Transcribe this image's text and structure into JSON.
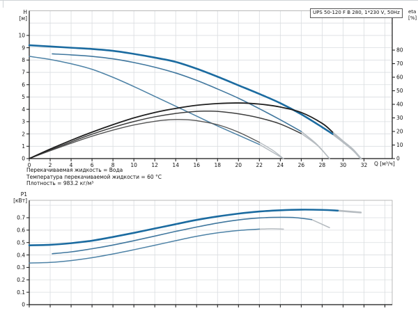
{
  "info_lines": [
    "Перекачиваемая жидкость = Вода",
    "Температура перекачиваемой жидкости = 60 °C",
    "Плотность = 983.2 кг/м³"
  ],
  "colors": {
    "speed3_blue": "#1b6ba0",
    "speed2_blue": "#40779e",
    "speed1_blue": "#4d82a6",
    "eta3_black": "#1f1f1f",
    "eta2_gray": "#3d3d3d",
    "eta1_gray": "#555555",
    "tail_gray": "#b6bcc1",
    "grid": "#dadde0",
    "border": "#a8a8a8",
    "axis": "#151515"
  },
  "chart_data": [
    {
      "type": "line",
      "title": "UPS 50-120 F B 280, 1*230 V, 50Hz",
      "xlabel": "Q [м³/ч]",
      "ylabel_left": [
        "H",
        "[м]"
      ],
      "ylabel_right": [
        "eta",
        "[%]"
      ],
      "xlim": [
        0,
        34.7
      ],
      "x_grid_step": 2,
      "x_ticks": [
        0,
        2,
        4,
        6,
        8,
        10,
        12,
        14,
        16,
        18,
        20,
        22,
        24,
        26,
        28,
        30,
        32
      ],
      "x_ticks_labeled": true,
      "ylim_left": [
        0,
        12
      ],
      "y_grid_step_left": 1,
      "y_left_ticks": [
        0,
        1,
        2,
        3,
        4,
        5,
        6,
        7,
        8,
        9,
        10
      ],
      "ylim_right": [
        0,
        109
      ],
      "y_right_ticks": [
        0,
        10,
        20,
        30,
        40,
        50,
        60,
        70,
        80
      ],
      "grid": true,
      "series": [
        {
          "name": "H curve speed 1",
          "axis": "left",
          "color": "speed1_blue",
          "width": 1.5,
          "points": [
            [
              0,
              8.3
            ],
            [
              2,
              8.05
            ],
            [
              4,
              7.7
            ],
            [
              6,
              7.25
            ],
            [
              8,
              6.6
            ],
            [
              10,
              5.85
            ],
            [
              12,
              5.05
            ],
            [
              14,
              4.25
            ],
            [
              16,
              3.45
            ],
            [
              18,
              2.65
            ],
            [
              20,
              1.9
            ],
            [
              22,
              1.15
            ]
          ],
          "tail": [
            [
              22,
              1.15
            ],
            [
              23.3,
              0.5
            ],
            [
              24.3,
              0
            ]
          ]
        },
        {
          "name": "H curve speed 2",
          "axis": "left",
          "color": "speed2_blue",
          "width": 1.6,
          "points": [
            [
              2.2,
              8.5
            ],
            [
              4,
              8.42
            ],
            [
              6,
              8.3
            ],
            [
              8,
              8.1
            ],
            [
              10,
              7.8
            ],
            [
              12,
              7.42
            ],
            [
              14,
              6.95
            ],
            [
              16,
              6.35
            ],
            [
              18,
              5.65
            ],
            [
              20,
              4.9
            ],
            [
              22,
              4.05
            ],
            [
              24,
              3.15
            ],
            [
              26,
              2.2
            ]
          ],
          "tail": [
            [
              26,
              2.2
            ],
            [
              27.5,
              1.15
            ],
            [
              28.7,
              0
            ]
          ]
        },
        {
          "name": "H curve speed 3",
          "axis": "left",
          "color": "speed3_blue",
          "width": 2.6,
          "points": [
            [
              0,
              9.2
            ],
            [
              2,
              9.1
            ],
            [
              4,
              9.0
            ],
            [
              6,
              8.9
            ],
            [
              8,
              8.75
            ],
            [
              10,
              8.5
            ],
            [
              12,
              8.2
            ],
            [
              14,
              7.85
            ],
            [
              16,
              7.3
            ],
            [
              18,
              6.65
            ],
            [
              20,
              5.95
            ],
            [
              22,
              5.25
            ],
            [
              24,
              4.5
            ],
            [
              26,
              3.6
            ],
            [
              28,
              2.55
            ],
            [
              29,
              2.0
            ]
          ],
          "tail": [
            [
              29,
              2.0
            ],
            [
              30,
              1.35
            ],
            [
              31,
              0.65
            ],
            [
              31.7,
              0
            ]
          ]
        },
        {
          "name": "eta curve speed 1",
          "axis": "right",
          "color": "eta1_gray",
          "width": 1.4,
          "points": [
            [
              0,
              0
            ],
            [
              2,
              5.8
            ],
            [
              4,
              11.3
            ],
            [
              6,
              16.5
            ],
            [
              8,
              21
            ],
            [
              10,
              24.8
            ],
            [
              12,
              27.5
            ],
            [
              13,
              28.4
            ],
            [
              14,
              28.8
            ],
            [
              15,
              28.7
            ],
            [
              16,
              28
            ],
            [
              18,
              25
            ],
            [
              20,
              19.5
            ],
            [
              22,
              12
            ]
          ],
          "tail": [
            [
              22,
              12
            ],
            [
              23.3,
              6
            ],
            [
              24.3,
              0
            ]
          ]
        },
        {
          "name": "eta curve speed 2",
          "axis": "right",
          "color": "eta2_gray",
          "width": 1.5,
          "points": [
            [
              0,
              0
            ],
            [
              2,
              6.3
            ],
            [
              4,
              12.3
            ],
            [
              6,
              18
            ],
            [
              8,
              23
            ],
            [
              10,
              27.3
            ],
            [
              12,
              30.8
            ],
            [
              14,
              33.3
            ],
            [
              16,
              34.8
            ],
            [
              17,
              35
            ],
            [
              18,
              34.8
            ],
            [
              20,
              33
            ],
            [
              22,
              30
            ],
            [
              24,
              25.5
            ],
            [
              26,
              18.5
            ]
          ],
          "tail": [
            [
              26,
              18.5
            ],
            [
              27.5,
              10
            ],
            [
              28.7,
              0
            ]
          ]
        },
        {
          "name": "eta curve speed 3",
          "axis": "right",
          "color": "eta3_black",
          "width": 1.8,
          "points": [
            [
              0,
              0
            ],
            [
              2,
              7
            ],
            [
              4,
              13.5
            ],
            [
              6,
              19.5
            ],
            [
              8,
              25
            ],
            [
              10,
              30
            ],
            [
              12,
              34
            ],
            [
              14,
              37
            ],
            [
              16,
              39.3
            ],
            [
              18,
              40.6
            ],
            [
              20,
              41
            ],
            [
              22,
              40.2
            ],
            [
              24,
              38
            ],
            [
              26,
              34
            ],
            [
              28,
              26
            ],
            [
              29,
              19.5
            ]
          ],
          "tail": [
            [
              29,
              19.5
            ],
            [
              30,
              13
            ],
            [
              31,
              6.5
            ],
            [
              31.7,
              0
            ]
          ]
        }
      ]
    },
    {
      "type": "line",
      "title": "",
      "xlabel": "",
      "ylabel_left": [
        "P1",
        "[кВт]"
      ],
      "xlim": [
        0,
        34.7
      ],
      "x_grid_step": 2,
      "x_ticks": [
        0,
        2,
        4,
        6,
        8,
        10,
        12,
        14,
        16,
        18,
        20,
        22,
        24,
        26,
        28,
        30,
        32,
        34
      ],
      "x_ticks_labeled": false,
      "ylim_left": [
        0,
        0.84
      ],
      "y_grid_step_left": 0.1,
      "y_left_ticks": [
        0,
        0.1,
        0.2,
        0.3,
        0.4,
        0.5,
        0.6,
        0.7
      ],
      "grid": true,
      "series": [
        {
          "name": "P1 curve speed 1",
          "axis": "left",
          "color": "speed1_blue",
          "width": 1.5,
          "points": [
            [
              0,
              0.335
            ],
            [
              2,
              0.34
            ],
            [
              4,
              0.355
            ],
            [
              6,
              0.378
            ],
            [
              8,
              0.408
            ],
            [
              10,
              0.442
            ],
            [
              12,
              0.478
            ],
            [
              14,
              0.515
            ],
            [
              16,
              0.55
            ],
            [
              18,
              0.578
            ],
            [
              20,
              0.597
            ],
            [
              22,
              0.608
            ]
          ],
          "tail": [
            [
              22,
              0.608
            ],
            [
              23.2,
              0.611
            ],
            [
              24.3,
              0.608
            ]
          ]
        },
        {
          "name": "P1 curve speed 2",
          "axis": "left",
          "color": "speed2_blue",
          "width": 1.6,
          "points": [
            [
              2.2,
              0.41
            ],
            [
              4,
              0.425
            ],
            [
              6,
              0.45
            ],
            [
              8,
              0.48
            ],
            [
              10,
              0.515
            ],
            [
              12,
              0.552
            ],
            [
              14,
              0.59
            ],
            [
              16,
              0.625
            ],
            [
              18,
              0.657
            ],
            [
              20,
              0.682
            ],
            [
              22,
              0.698
            ],
            [
              24,
              0.703
            ],
            [
              25.5,
              0.7
            ],
            [
              27,
              0.685
            ]
          ],
          "tail": [
            [
              27,
              0.685
            ],
            [
              28.7,
              0.62
            ]
          ]
        },
        {
          "name": "P1 curve speed 3",
          "axis": "left",
          "color": "speed3_blue",
          "width": 2.6,
          "points": [
            [
              0,
              0.478
            ],
            [
              2,
              0.482
            ],
            [
              4,
              0.495
            ],
            [
              6,
              0.515
            ],
            [
              8,
              0.545
            ],
            [
              10,
              0.578
            ],
            [
              12,
              0.613
            ],
            [
              14,
              0.648
            ],
            [
              16,
              0.682
            ],
            [
              18,
              0.71
            ],
            [
              20,
              0.733
            ],
            [
              22,
              0.75
            ],
            [
              24,
              0.76
            ],
            [
              26,
              0.765
            ],
            [
              28,
              0.763
            ],
            [
              29.5,
              0.757
            ]
          ],
          "tail": [
            [
              29.5,
              0.757
            ],
            [
              31.7,
              0.742
            ]
          ]
        }
      ]
    }
  ]
}
